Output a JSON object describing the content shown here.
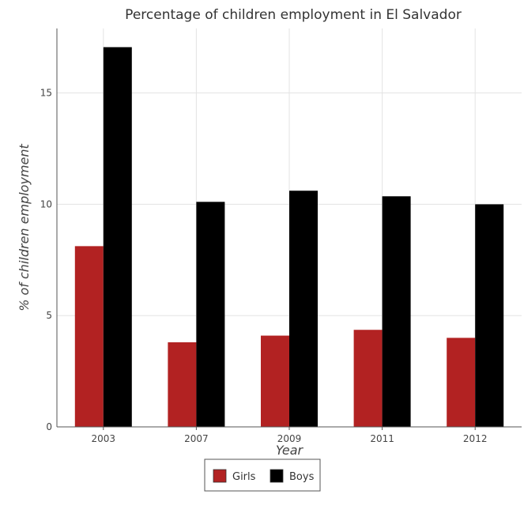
{
  "chart_data": {
    "type": "bar",
    "title": "Percentage of children employment in El Salvador",
    "xlabel": "Year",
    "ylabel": "% of children employment",
    "categories": [
      "2003",
      "2007",
      "2009",
      "2011",
      "2012"
    ],
    "series": [
      {
        "name": "Girls",
        "color": "#b22222",
        "values": [
          8.12,
          3.8,
          4.1,
          4.36,
          4.0
        ]
      },
      {
        "name": "Boys",
        "color": "#000000",
        "values": [
          17.06,
          10.11,
          10.61,
          10.36,
          10.0
        ]
      }
    ],
    "ylim": [
      0,
      17.9
    ],
    "yticks": [
      0,
      5,
      10,
      15
    ],
    "grid": true,
    "legend_position": "bottom-center"
  }
}
